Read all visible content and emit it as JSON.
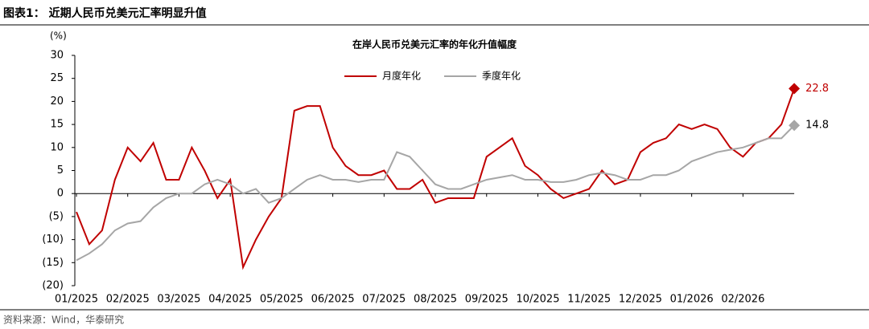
{
  "header": "图表1：  近期人民币兑美元汇率明显升值",
  "source": "资料来源：Wind，华泰研究",
  "chart_data": {
    "type": "line",
    "title": "在岸人民币兑美元汇率的年化升值幅度",
    "y_unit": "(%)",
    "categories": [
      "01/2025",
      null,
      null,
      null,
      "02/2025",
      null,
      null,
      null,
      "03/2025",
      null,
      null,
      null,
      "04/2025",
      null,
      null,
      null,
      "05/2025",
      null,
      null,
      null,
      "06/2025",
      null,
      null,
      null,
      "07/2025",
      null,
      null,
      null,
      "08/2025",
      null,
      null,
      null,
      "09/2025",
      null,
      null,
      null,
      "10/2025",
      null,
      null,
      null,
      "11/2025",
      null,
      null,
      null,
      "12/2025",
      null,
      null,
      null,
      "01/2026",
      null,
      null,
      null,
      "02/2026",
      null,
      null,
      null,
      null
    ],
    "series": [
      {
        "name": "月度年化",
        "color": "#c00000",
        "values": [
          -4,
          -11,
          -8,
          3,
          10,
          7,
          11,
          3,
          3,
          10,
          5,
          -1,
          3,
          -16,
          -10,
          -5,
          -1,
          18,
          19,
          19,
          10,
          6,
          4,
          4,
          5,
          1,
          1,
          3,
          -2,
          -1,
          -1,
          -1,
          8,
          10,
          12,
          6,
          4,
          1,
          -1,
          0,
          1,
          5,
          2,
          3,
          9,
          11,
          12,
          15,
          14,
          15,
          14,
          10,
          8,
          11,
          12,
          15,
          22.8
        ]
      },
      {
        "name": "季度年化",
        "color": "#a6a6a6",
        "values": [
          -14.5,
          -13,
          -11,
          -8,
          -6.5,
          -6,
          -3,
          -1,
          0,
          0,
          2,
          3,
          2,
          0,
          1,
          -2,
          -1,
          1,
          3,
          4,
          3,
          3,
          2.5,
          3,
          3,
          9,
          8,
          5,
          2,
          1,
          1,
          2,
          3,
          3.5,
          4,
          3,
          3,
          2.5,
          2.5,
          3,
          4,
          4.5,
          4,
          3,
          3,
          4,
          4,
          5,
          7,
          8,
          9,
          9.5,
          10,
          11,
          12,
          12,
          14.8
        ]
      }
    ],
    "ylim": [
      -20,
      30
    ],
    "yticks": [
      {
        "value": -20,
        "label": "(20)"
      },
      {
        "value": -15,
        "label": "(15)"
      },
      {
        "value": -10,
        "label": "(10)"
      },
      {
        "value": -5,
        "label": "(5)"
      },
      0,
      5,
      10,
      15,
      20,
      25,
      30
    ],
    "grid": false,
    "legend": "top",
    "end_markers": true
  }
}
